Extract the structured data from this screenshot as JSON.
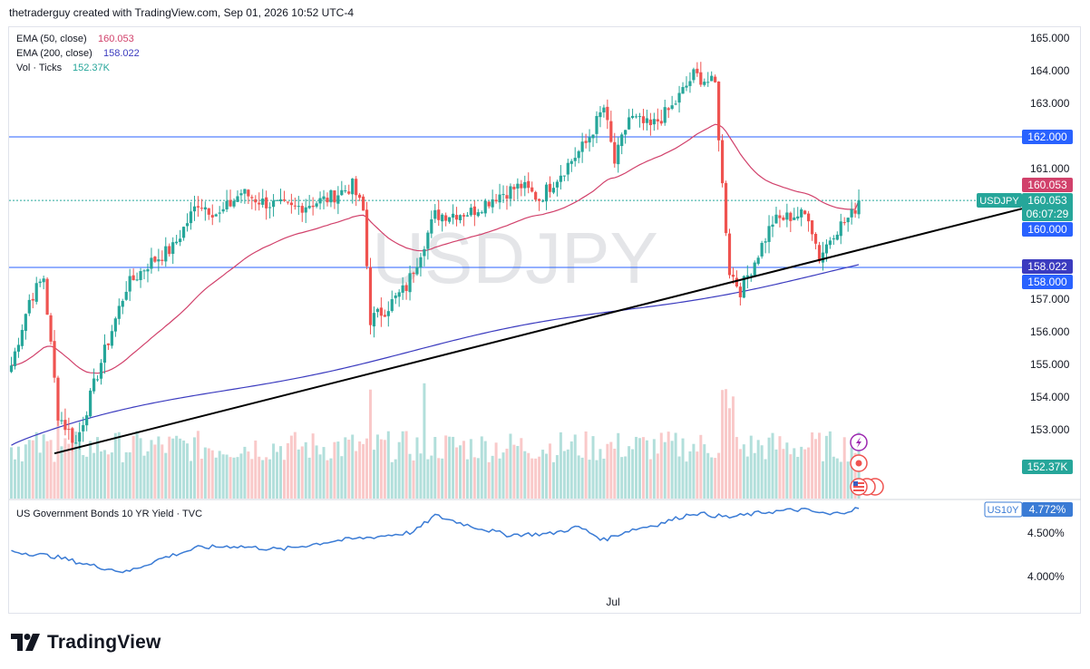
{
  "header": {
    "text": "thetraderguy created with TradingView.com, Sep 01, 2026 10:52 UTC-4"
  },
  "watermark": "USDJPY",
  "legend": [
    {
      "label": "EMA (50, close)",
      "value": "160.053",
      "color": "#d1416b"
    },
    {
      "label": "EMA (200, close)",
      "value": "158.022",
      "color": "#3b3bbf"
    },
    {
      "label": "Vol · Ticks",
      "value": "152.37K",
      "color": "#26a69a"
    }
  ],
  "price_axis": {
    "ticks": [
      "165.000",
      "164.000",
      "163.000",
      "161.000",
      "157.000",
      "156.000",
      "155.000",
      "154.000",
      "153.000"
    ],
    "tag_162": "162.000",
    "tag_ema50": "160.053",
    "tag_last_symbol": "USDJPY",
    "tag_last_price": "160.053",
    "tag_countdown": "06:07:29",
    "tag_160": "160.000",
    "tag_ema200": "158.022",
    "tag_158": "158.000",
    "tag_vol": "152.37K"
  },
  "lower_pane": {
    "title": "US Government Bonds 10 YR Yield · TVC",
    "tag_symbol": "US10Y",
    "tag_value": "4.772%",
    "ticks": [
      "4.500%",
      "4.000%"
    ]
  },
  "x_axis": {
    "label": "Jul"
  },
  "footer": {
    "brand": "TradingView"
  },
  "colors": {
    "up": "#26a69a",
    "down": "#ef5350",
    "ema50": "#d1416b",
    "ema200": "#3b3bbf",
    "level": "#2962ff",
    "yield": "#3a7bd5"
  },
  "chart_data": [
    {
      "type": "candlestick",
      "symbol": "USDJPY",
      "ylim": [
        152.3,
        165.3
      ],
      "horizontal_levels": [
        162.0,
        158.0
      ],
      "current_price": 160.053,
      "trendline": {
        "from": 152.3,
        "to": 159.8
      },
      "anchors": [
        [
          0,
          155
        ],
        [
          5,
          157
        ],
        [
          9,
          157.7
        ],
        [
          13,
          153.5
        ],
        [
          18,
          152.6
        ],
        [
          25,
          155.1
        ],
        [
          32,
          157.4
        ],
        [
          38,
          158.1
        ],
        [
          45,
          158.6
        ],
        [
          52,
          160
        ],
        [
          58,
          159.6
        ],
        [
          64,
          160.3
        ],
        [
          70,
          160.0
        ],
        [
          78,
          159.8
        ],
        [
          88,
          160.1
        ],
        [
          95,
          160.5
        ],
        [
          98,
          159.7
        ],
        [
          100,
          156.4
        ],
        [
          104,
          156.7
        ],
        [
          110,
          157.4
        ],
        [
          118,
          159.6
        ],
        [
          128,
          159.7
        ],
        [
          135,
          160.2
        ],
        [
          142,
          160.5
        ],
        [
          147,
          160.1
        ],
        [
          153,
          160.9
        ],
        [
          160,
          161.8
        ],
        [
          165,
          162.9
        ],
        [
          168,
          161.2
        ],
        [
          172,
          162.6
        ],
        [
          178,
          162.3
        ],
        [
          184,
          162.9
        ],
        [
          190,
          163.9
        ],
        [
          196,
          163.6
        ],
        [
          198,
          160.5
        ],
        [
          200,
          157.9
        ],
        [
          203,
          157.3
        ],
        [
          207,
          158.2
        ],
        [
          212,
          159.4
        ],
        [
          218,
          159.6
        ],
        [
          222,
          159.6
        ],
        [
          225,
          158.3
        ],
        [
          229,
          159.1
        ],
        [
          234,
          159.6
        ],
        [
          236,
          160.053
        ]
      ]
    },
    {
      "type": "line",
      "series": [
        {
          "name": "EMA (50, close)",
          "last": 160.053
        },
        {
          "name": "EMA (200, close)",
          "last": 158.022
        }
      ]
    },
    {
      "type": "bar",
      "series": [
        {
          "name": "Vol · Ticks",
          "last": 152370
        }
      ]
    },
    {
      "type": "line",
      "series": [
        {
          "name": "US Government Bonds 10 YR Yield · TVC",
          "last": 4.772
        }
      ],
      "ylim": [
        3.85,
        4.85
      ],
      "anchors": [
        [
          0,
          4.28
        ],
        [
          12,
          4.22
        ],
        [
          22,
          4.12
        ],
        [
          32,
          4.04
        ],
        [
          42,
          4.2
        ],
        [
          52,
          4.32
        ],
        [
          62,
          4.34
        ],
        [
          75,
          4.3
        ],
        [
          90,
          4.4
        ],
        [
          100,
          4.44
        ],
        [
          112,
          4.5
        ],
        [
          118,
          4.69
        ],
        [
          128,
          4.57
        ],
        [
          138,
          4.47
        ],
        [
          150,
          4.48
        ],
        [
          158,
          4.56
        ],
        [
          165,
          4.41
        ],
        [
          172,
          4.52
        ],
        [
          180,
          4.59
        ],
        [
          190,
          4.72
        ],
        [
          200,
          4.67
        ],
        [
          210,
          4.73
        ],
        [
          220,
          4.76
        ],
        [
          228,
          4.7
        ],
        [
          236,
          4.772
        ]
      ]
    }
  ]
}
